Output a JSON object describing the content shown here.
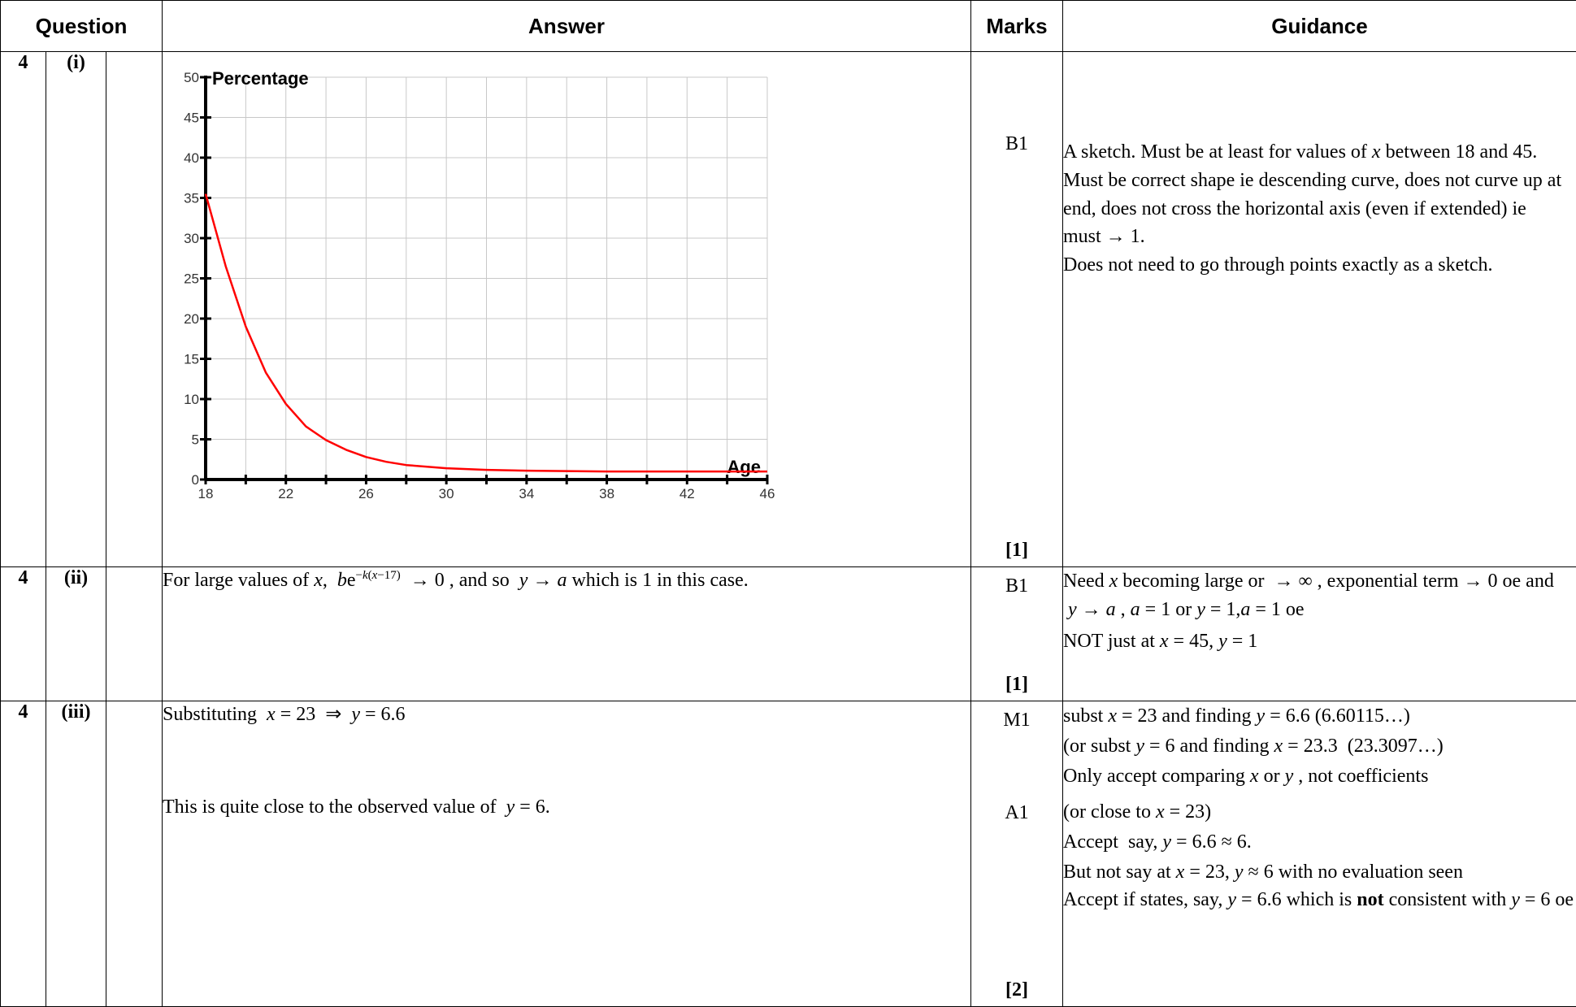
{
  "headers": {
    "question": "Question",
    "answer": "Answer",
    "marks": "Marks",
    "guidance": "Guidance"
  },
  "rows": [
    {
      "q": "4",
      "part": "(i)",
      "marks": [
        "B1"
      ],
      "total": "[1]",
      "guidance": [
        "A sketch. Must be at least for values of x between 18 and 45. Must be correct shape ie descending curve, does not curve up at end, does not cross the horizontal axis (even if extended) ie must → 1.",
        "Does not need to go through points exactly as a sketch."
      ]
    },
    {
      "q": "4",
      "part": "(ii)",
      "answer": "For large values of x, be^{-k(x-17)} → 0, and so y → a which is 1 in this case.",
      "marks": [
        "B1"
      ],
      "total": "[1]",
      "guidance": [
        "Need x becoming large or → ∞, exponential term → 0 oe and y → a, a = 1 or y = 1, a = 1 oe",
        "NOT just at x = 45, y = 1"
      ]
    },
    {
      "q": "4",
      "part": "(iii)",
      "answer": [
        "Substituting x = 23 ⇒ y = 6.6",
        "This is quite close to the observed value of y = 6."
      ],
      "marks": [
        "M1",
        "A1"
      ],
      "total": "[2]",
      "guidance": [
        "subst x = 23 and finding y = 6.6 (6.60115…)",
        "(or subst y = 6 and finding x = 23.3 (23.3097…)",
        "Only accept comparing x or y , not coefficients",
        "(or close to x = 23)",
        "Accept say, y = 6.6 ≈ 6.",
        "But not say at x = 23, y ≈ 6 with no evaluation seen",
        "Accept if states, say, y = 6.6 which is not consistent with y = 6 oe"
      ]
    }
  ],
  "chart_data": {
    "type": "line",
    "xlabel": "Age",
    "ylabel": "Percentage",
    "xlim": [
      18,
      46
    ],
    "ylim": [
      0,
      50
    ],
    "x_ticks": [
      "18",
      "22",
      "26",
      "30",
      "34",
      "38",
      "42",
      "46"
    ],
    "y_ticks": [
      "0",
      "5",
      "10",
      "15",
      "20",
      "25",
      "30",
      "35",
      "40",
      "45",
      "50"
    ],
    "grid": true,
    "series": [
      {
        "color": "#ff0000",
        "x": [
          18,
          19,
          20,
          21,
          22,
          23,
          24,
          25,
          26,
          27,
          28,
          30,
          32,
          34,
          38,
          42,
          46
        ],
        "y": [
          35.5,
          26.5,
          19.0,
          13.3,
          9.4,
          6.6,
          4.9,
          3.7,
          2.8,
          2.2,
          1.8,
          1.4,
          1.2,
          1.1,
          1.0,
          1.0,
          1.0
        ]
      }
    ]
  }
}
